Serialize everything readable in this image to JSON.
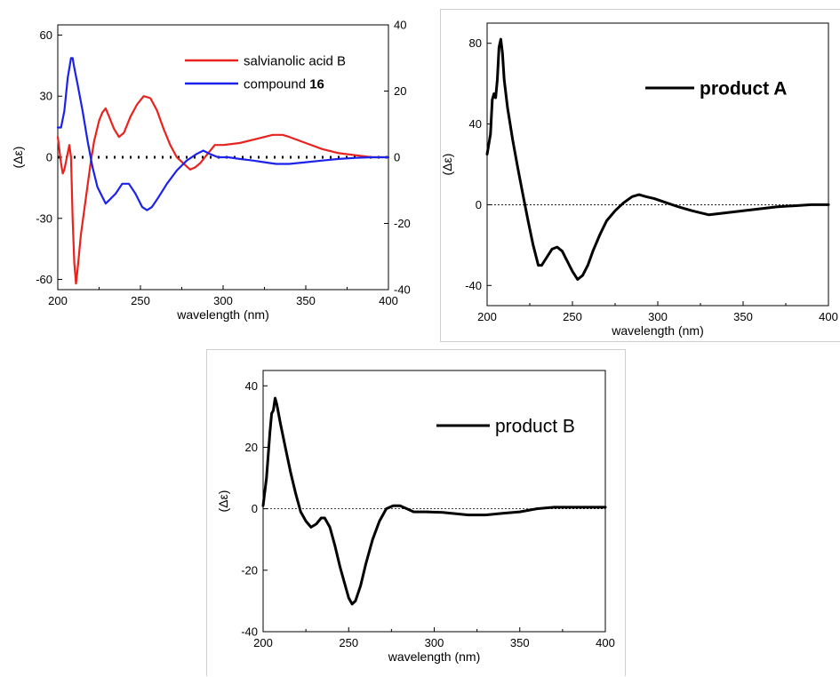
{
  "chart_data": [
    {
      "type": "line",
      "xlabel": "wavelength (nm)",
      "ylabel": "(Δε)",
      "xlim": [
        200,
        400
      ],
      "ylim": [
        -65,
        65
      ],
      "y2lim": [
        -40,
        40
      ],
      "x_ticks": [
        "200",
        "250",
        "300",
        "350",
        "400"
      ],
      "y_ticks": [
        "60",
        "30",
        "0",
        "-30",
        "-60"
      ],
      "y2_ticks": [
        "40",
        "20",
        "0",
        "-20",
        "-40"
      ],
      "legend_position": "top-right",
      "series": [
        {
          "name": "salvianolic acid B",
          "color": "#e8231e",
          "axis": "left",
          "points": [
            [
              200,
              10
            ],
            [
              202,
              -3
            ],
            [
              203,
              -8
            ],
            [
              204,
              -6
            ],
            [
              205,
              -2
            ],
            [
              206,
              2
            ],
            [
              207,
              6
            ],
            [
              208,
              0
            ],
            [
              209,
              -30
            ],
            [
              210,
              -52
            ],
            [
              211,
              -62
            ],
            [
              212,
              -55
            ],
            [
              214,
              -38
            ],
            [
              217,
              -20
            ],
            [
              220,
              -2
            ],
            [
              222,
              8
            ],
            [
              225,
              18
            ],
            [
              227,
              22
            ],
            [
              229,
              24
            ],
            [
              231,
              20
            ],
            [
              234,
              14
            ],
            [
              237,
              10
            ],
            [
              240,
              12
            ],
            [
              244,
              20
            ],
            [
              248,
              26
            ],
            [
              252,
              30
            ],
            [
              256,
              29
            ],
            [
              260,
              23
            ],
            [
              264,
              14
            ],
            [
              268,
              6
            ],
            [
              272,
              0
            ],
            [
              276,
              -3
            ],
            [
              280,
              -6
            ],
            [
              283,
              -5
            ],
            [
              286,
              -3
            ],
            [
              289,
              0
            ],
            [
              292,
              3
            ],
            [
              295,
              6
            ],
            [
              300,
              6
            ],
            [
              310,
              7
            ],
            [
              320,
              9
            ],
            [
              330,
              11
            ],
            [
              336,
              11
            ],
            [
              340,
              10
            ],
            [
              350,
              7
            ],
            [
              360,
              4
            ],
            [
              370,
              2
            ],
            [
              380,
              1
            ],
            [
              390,
              0
            ],
            [
              400,
              0
            ]
          ]
        },
        {
          "name": "compound 16",
          "name_prefix": "compound ",
          "name_bold": "16",
          "color": "#1c22ea",
          "axis": "right",
          "points": [
            [
              200,
              9
            ],
            [
              202,
              9
            ],
            [
              204,
              14
            ],
            [
              206,
              24
            ],
            [
              208,
              30
            ],
            [
              209,
              30
            ],
            [
              210,
              27
            ],
            [
              212,
              22
            ],
            [
              215,
              14
            ],
            [
              218,
              5
            ],
            [
              221,
              -3
            ],
            [
              224,
              -9
            ],
            [
              227,
              -12
            ],
            [
              229,
              -14
            ],
            [
              231,
              -13
            ],
            [
              235,
              -11
            ],
            [
              239,
              -8
            ],
            [
              243,
              -8
            ],
            [
              247,
              -11
            ],
            [
              251,
              -15
            ],
            [
              254,
              -16
            ],
            [
              257,
              -15
            ],
            [
              261,
              -12
            ],
            [
              266,
              -8
            ],
            [
              272,
              -4
            ],
            [
              278,
              -1
            ],
            [
              284,
              1
            ],
            [
              288,
              2
            ],
            [
              292,
              1
            ],
            [
              297,
              0
            ],
            [
              303,
              0
            ],
            [
              310,
              -0.5
            ],
            [
              318,
              -1
            ],
            [
              325,
              -1.5
            ],
            [
              332,
              -2
            ],
            [
              340,
              -2
            ],
            [
              350,
              -1.5
            ],
            [
              360,
              -1
            ],
            [
              370,
              -0.5
            ],
            [
              380,
              -0.2
            ],
            [
              390,
              0
            ],
            [
              400,
              0
            ]
          ]
        }
      ]
    },
    {
      "type": "line",
      "xlabel": "wavelength (nm)",
      "ylabel": "(Δε)",
      "xlim": [
        200,
        400
      ],
      "ylim": [
        -50,
        90
      ],
      "x_ticks": [
        "200",
        "250",
        "300",
        "350",
        "400"
      ],
      "y_ticks": [
        "80",
        "40",
        "0",
        "-40"
      ],
      "legend_position": "top-right",
      "series": [
        {
          "name": "product A",
          "color": "#000000",
          "points": [
            [
              200,
              25
            ],
            [
              202,
              35
            ],
            [
              203,
              52
            ],
            [
              204,
              55
            ],
            [
              205,
              53
            ],
            [
              206,
              62
            ],
            [
              207,
              78
            ],
            [
              208,
              82
            ],
            [
              209,
              75
            ],
            [
              210,
              62
            ],
            [
              212,
              48
            ],
            [
              215,
              32
            ],
            [
              218,
              18
            ],
            [
              221,
              5
            ],
            [
              224,
              -8
            ],
            [
              227,
              -20
            ],
            [
              230,
              -30
            ],
            [
              232,
              -30
            ],
            [
              235,
              -26
            ],
            [
              238,
              -22
            ],
            [
              241,
              -21
            ],
            [
              244,
              -23
            ],
            [
              247,
              -28
            ],
            [
              250,
              -33
            ],
            [
              253,
              -37
            ],
            [
              256,
              -35
            ],
            [
              259,
              -30
            ],
            [
              262,
              -23
            ],
            [
              266,
              -15
            ],
            [
              270,
              -8
            ],
            [
              275,
              -3
            ],
            [
              280,
              1
            ],
            [
              285,
              4
            ],
            [
              289,
              5
            ],
            [
              293,
              4
            ],
            [
              298,
              3
            ],
            [
              305,
              1
            ],
            [
              312,
              -1
            ],
            [
              320,
              -3
            ],
            [
              330,
              -5
            ],
            [
              340,
              -4
            ],
            [
              350,
              -3
            ],
            [
              360,
              -2
            ],
            [
              370,
              -1
            ],
            [
              380,
              -0.5
            ],
            [
              390,
              0
            ],
            [
              400,
              0
            ]
          ]
        }
      ]
    },
    {
      "type": "line",
      "xlabel": "wavelength (nm)",
      "ylabel": "(Δε)",
      "xlim": [
        200,
        400
      ],
      "ylim": [
        -40,
        45
      ],
      "x_ticks": [
        "200",
        "250",
        "300",
        "350",
        "400"
      ],
      "y_ticks": [
        "40",
        "20",
        "0",
        "-20",
        "-40"
      ],
      "legend_position": "top-right",
      "series": [
        {
          "name": "product B",
          "color": "#000000",
          "points": [
            [
              200,
              1
            ],
            [
              202,
              10
            ],
            [
              204,
              25
            ],
            [
              205,
              31
            ],
            [
              206,
              32
            ],
            [
              207,
              36
            ],
            [
              208,
              34
            ],
            [
              210,
              28
            ],
            [
              213,
              20
            ],
            [
              216,
              12
            ],
            [
              219,
              5
            ],
            [
              222,
              -1
            ],
            [
              225,
              -4
            ],
            [
              228,
              -6
            ],
            [
              231,
              -5
            ],
            [
              234,
              -3
            ],
            [
              236,
              -3
            ],
            [
              239,
              -6
            ],
            [
              242,
              -12
            ],
            [
              245,
              -19
            ],
            [
              248,
              -25
            ],
            [
              250,
              -29
            ],
            [
              252,
              -31
            ],
            [
              254,
              -30
            ],
            [
              257,
              -25
            ],
            [
              260,
              -18
            ],
            [
              264,
              -10
            ],
            [
              268,
              -4
            ],
            [
              272,
              0
            ],
            [
              276,
              1
            ],
            [
              280,
              1
            ],
            [
              284,
              0
            ],
            [
              288,
              -1
            ],
            [
              295,
              -1
            ],
            [
              305,
              -1.2
            ],
            [
              320,
              -2
            ],
            [
              330,
              -2
            ],
            [
              340,
              -1.5
            ],
            [
              350,
              -1
            ],
            [
              360,
              0
            ],
            [
              370,
              0.5
            ],
            [
              380,
              0.5
            ],
            [
              390,
              0.5
            ],
            [
              400,
              0.5
            ]
          ]
        }
      ]
    }
  ]
}
